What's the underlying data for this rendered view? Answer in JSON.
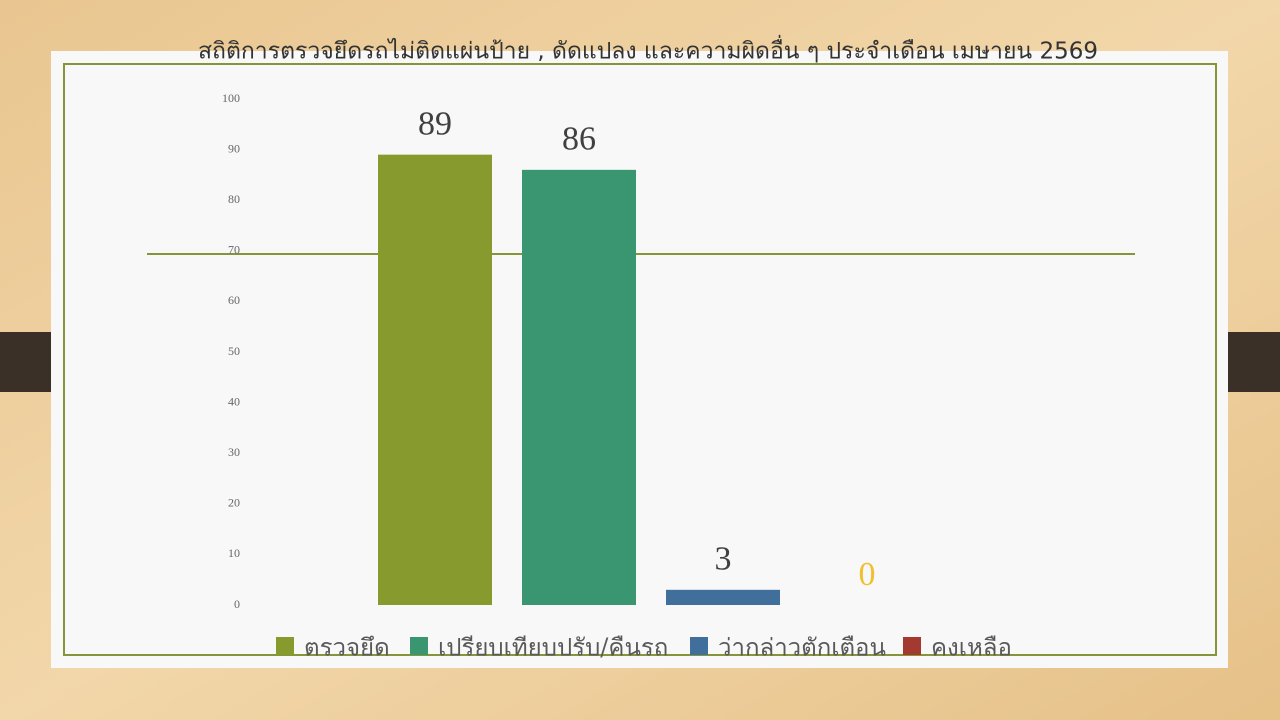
{
  "chart_data": {
    "type": "bar",
    "title": "สถิติการตรวจยึดรถไม่ติดแผ่นป้าย , ดัดแปลง และความผิดอื่น ๆ ประจำเดือน เมษายน  2569",
    "categories": [
      null
    ],
    "series": [
      {
        "name": "ตรวจยึด",
        "color": "#869a2d",
        "label_color": "#404040",
        "values": [
          89
        ]
      },
      {
        "name": "เปรียบเทียบปรับ/คืนรถ",
        "color": "#3a9670",
        "label_color": "#404040",
        "values": [
          86
        ]
      },
      {
        "name": "ว่ากล่าวตักเตือน",
        "color": "#416f9c",
        "label_color": "#404040",
        "values": [
          3
        ]
      },
      {
        "name": "คงเหลือ",
        "color": "#a23a32",
        "label_color": "#f0c030",
        "values": [
          0
        ]
      }
    ],
    "ylim": [
      0,
      100
    ],
    "yticks": [
      0,
      10,
      20,
      30,
      40,
      50,
      60,
      70,
      80,
      90,
      100
    ],
    "grid": false
  }
}
